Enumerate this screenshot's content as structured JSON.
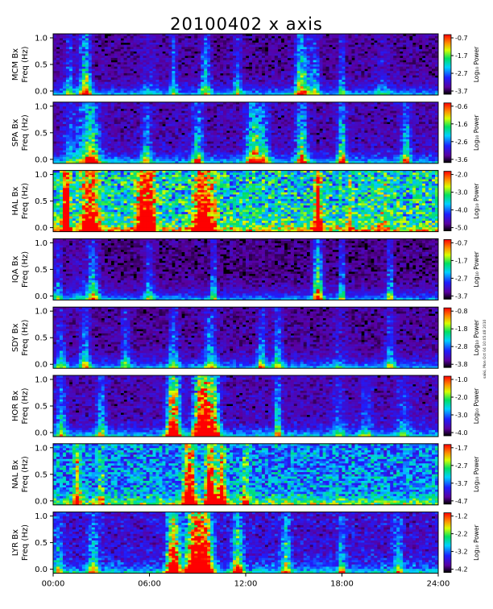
{
  "chart_data": {
    "type": "heatmap",
    "title": "20100402 x axis",
    "x_axis": {
      "range": [
        "00:00",
        "24:00"
      ],
      "ticks": [
        "00:00",
        "06:00",
        "12:00",
        "18:00",
        "24:00"
      ]
    },
    "y_ticks": [
      "0.0",
      "0.5",
      "1.0"
    ],
    "y_range": [
      0.0,
      1.0
    ],
    "colorbar_label": "Log₁₀ Power",
    "panels": [
      {
        "station": "MCM Bx",
        "ylabel": "Freq (Hz)",
        "colorbar_ticks": [
          "-0.7",
          "-1.7",
          "-2.7",
          "-3.7"
        ],
        "level": 0.12,
        "bursts": [
          [
            1.0,
            0.45,
            0.25
          ],
          [
            2.0,
            0.9,
            0.35
          ],
          [
            6.0,
            0.15,
            0.6
          ],
          [
            7.5,
            0.5,
            0.2
          ],
          [
            9.5,
            0.6,
            0.3
          ],
          [
            11.5,
            0.4,
            0.25
          ],
          [
            15.5,
            0.9,
            0.4
          ],
          [
            16.3,
            0.5,
            0.3
          ],
          [
            20.5,
            0.2,
            0.5
          ],
          [
            18.0,
            0.5,
            0.15
          ]
        ]
      },
      {
        "station": "SPA Bx",
        "ylabel": "Freq (Hz)",
        "colorbar_ticks": [
          "-0.6",
          "-1.6",
          "-2.6",
          "-3.6"
        ],
        "level": 0.15,
        "bursts": [
          [
            1.0,
            0.2,
            0.35
          ],
          [
            2.0,
            0.4,
            0.9
          ],
          [
            2.4,
            0.6,
            0.45
          ],
          [
            5.8,
            0.5,
            0.3
          ],
          [
            9.0,
            0.6,
            0.35
          ],
          [
            12.5,
            0.9,
            0.45
          ],
          [
            13.2,
            0.5,
            0.35
          ],
          [
            15.5,
            0.8,
            0.35
          ],
          [
            18.0,
            0.8,
            0.25
          ],
          [
            22.0,
            0.6,
            0.3
          ]
        ]
      },
      {
        "station": "HAL Bx",
        "ylabel": "Freq (Hz)",
        "colorbar_ticks": [
          "-2.0",
          "-3.0",
          "-4.0",
          "-5.0"
        ],
        "level": 0.5,
        "bursts": [
          [
            0.8,
            2.0,
            0.2
          ],
          [
            2.3,
            1.2,
            0.5
          ],
          [
            5.5,
            1.0,
            0.35
          ],
          [
            6.0,
            1.6,
            0.3
          ],
          [
            9.3,
            1.2,
            0.55
          ],
          [
            9.7,
            0.4,
            0.45
          ],
          [
            16.5,
            1.5,
            0.2
          ],
          [
            18.5,
            0.4,
            0.15
          ],
          [
            20.6,
            0.3,
            0.25
          ]
        ]
      },
      {
        "station": "IQA Bx",
        "ylabel": "Freq (Hz)",
        "colorbar_ticks": [
          "-0.7",
          "-1.7",
          "-2.7",
          "-3.7"
        ],
        "level": 0.1,
        "bursts": [
          [
            0.3,
            0.4,
            0.25
          ],
          [
            2.0,
            0.2,
            0.9
          ],
          [
            2.5,
            0.5,
            0.3
          ],
          [
            6.0,
            0.4,
            0.3
          ],
          [
            10.0,
            0.5,
            0.2
          ],
          [
            16.5,
            1.0,
            0.3
          ],
          [
            18.0,
            0.5,
            0.2
          ],
          [
            21.0,
            0.5,
            0.2
          ]
        ]
      },
      {
        "station": "SDY Bx",
        "ylabel": "Freq (Hz)",
        "colorbar_ticks": [
          "-0.8",
          "-1.8",
          "-2.8",
          "-3.8"
        ],
        "level": 0.12,
        "bursts": [
          [
            0.5,
            0.4,
            0.3
          ],
          [
            2.0,
            0.5,
            0.35
          ],
          [
            4.5,
            0.4,
            0.3
          ],
          [
            7.5,
            0.5,
            0.3
          ],
          [
            9.8,
            0.5,
            0.4
          ],
          [
            13.0,
            0.5,
            0.3
          ],
          [
            14.0,
            0.5,
            0.3
          ],
          [
            17.8,
            0.2,
            0.4
          ],
          [
            21.0,
            0.4,
            0.3
          ]
        ]
      },
      {
        "station": "HOR Bx",
        "ylabel": "Freq (Hz)",
        "colorbar_ticks": [
          "-1.0",
          "-2.0",
          "-3.0",
          "-4.0"
        ],
        "level": 0.15,
        "bursts": [
          [
            0.5,
            0.5,
            0.3
          ],
          [
            3.0,
            0.5,
            0.3
          ],
          [
            7.5,
            1.6,
            0.4
          ],
          [
            9.3,
            2.0,
            0.5
          ],
          [
            10.0,
            1.0,
            0.4
          ],
          [
            14.0,
            0.6,
            0.25
          ],
          [
            17.8,
            0.3,
            0.4
          ],
          [
            19.5,
            0.3,
            0.4
          ],
          [
            21.8,
            0.3,
            0.4
          ]
        ]
      },
      {
        "station": "NAL Bx",
        "ylabel": "Freq (Hz)",
        "colorbar_ticks": [
          "-1.7",
          "-2.7",
          "-3.7",
          "-4.7"
        ],
        "level": 0.38,
        "bursts": [
          [
            1.5,
            0.8,
            0.2
          ],
          [
            3.0,
            0.5,
            0.15
          ],
          [
            8.5,
            1.5,
            0.35
          ],
          [
            9.8,
            1.5,
            0.3
          ],
          [
            10.5,
            1.0,
            0.25
          ],
          [
            12.0,
            0.6,
            0.2
          ]
        ]
      },
      {
        "station": "LYR Bx",
        "ylabel": "Freq (Hz)",
        "colorbar_ticks": [
          "-1.2",
          "-2.2",
          "-3.2",
          "-4.2"
        ],
        "level": 0.2,
        "bursts": [
          [
            0.3,
            0.4,
            0.3
          ],
          [
            2.5,
            0.5,
            0.35
          ],
          [
            7.5,
            1.5,
            0.4
          ],
          [
            8.8,
            1.8,
            0.5
          ],
          [
            9.5,
            1.5,
            0.45
          ],
          [
            11.5,
            0.8,
            0.35
          ],
          [
            14.5,
            0.6,
            0.3
          ],
          [
            21.5,
            0.4,
            0.3
          ],
          [
            18.0,
            0.5,
            0.2
          ]
        ]
      }
    ]
  },
  "stamp": "saiki, Mon Oct 04 10:05:48 2010"
}
